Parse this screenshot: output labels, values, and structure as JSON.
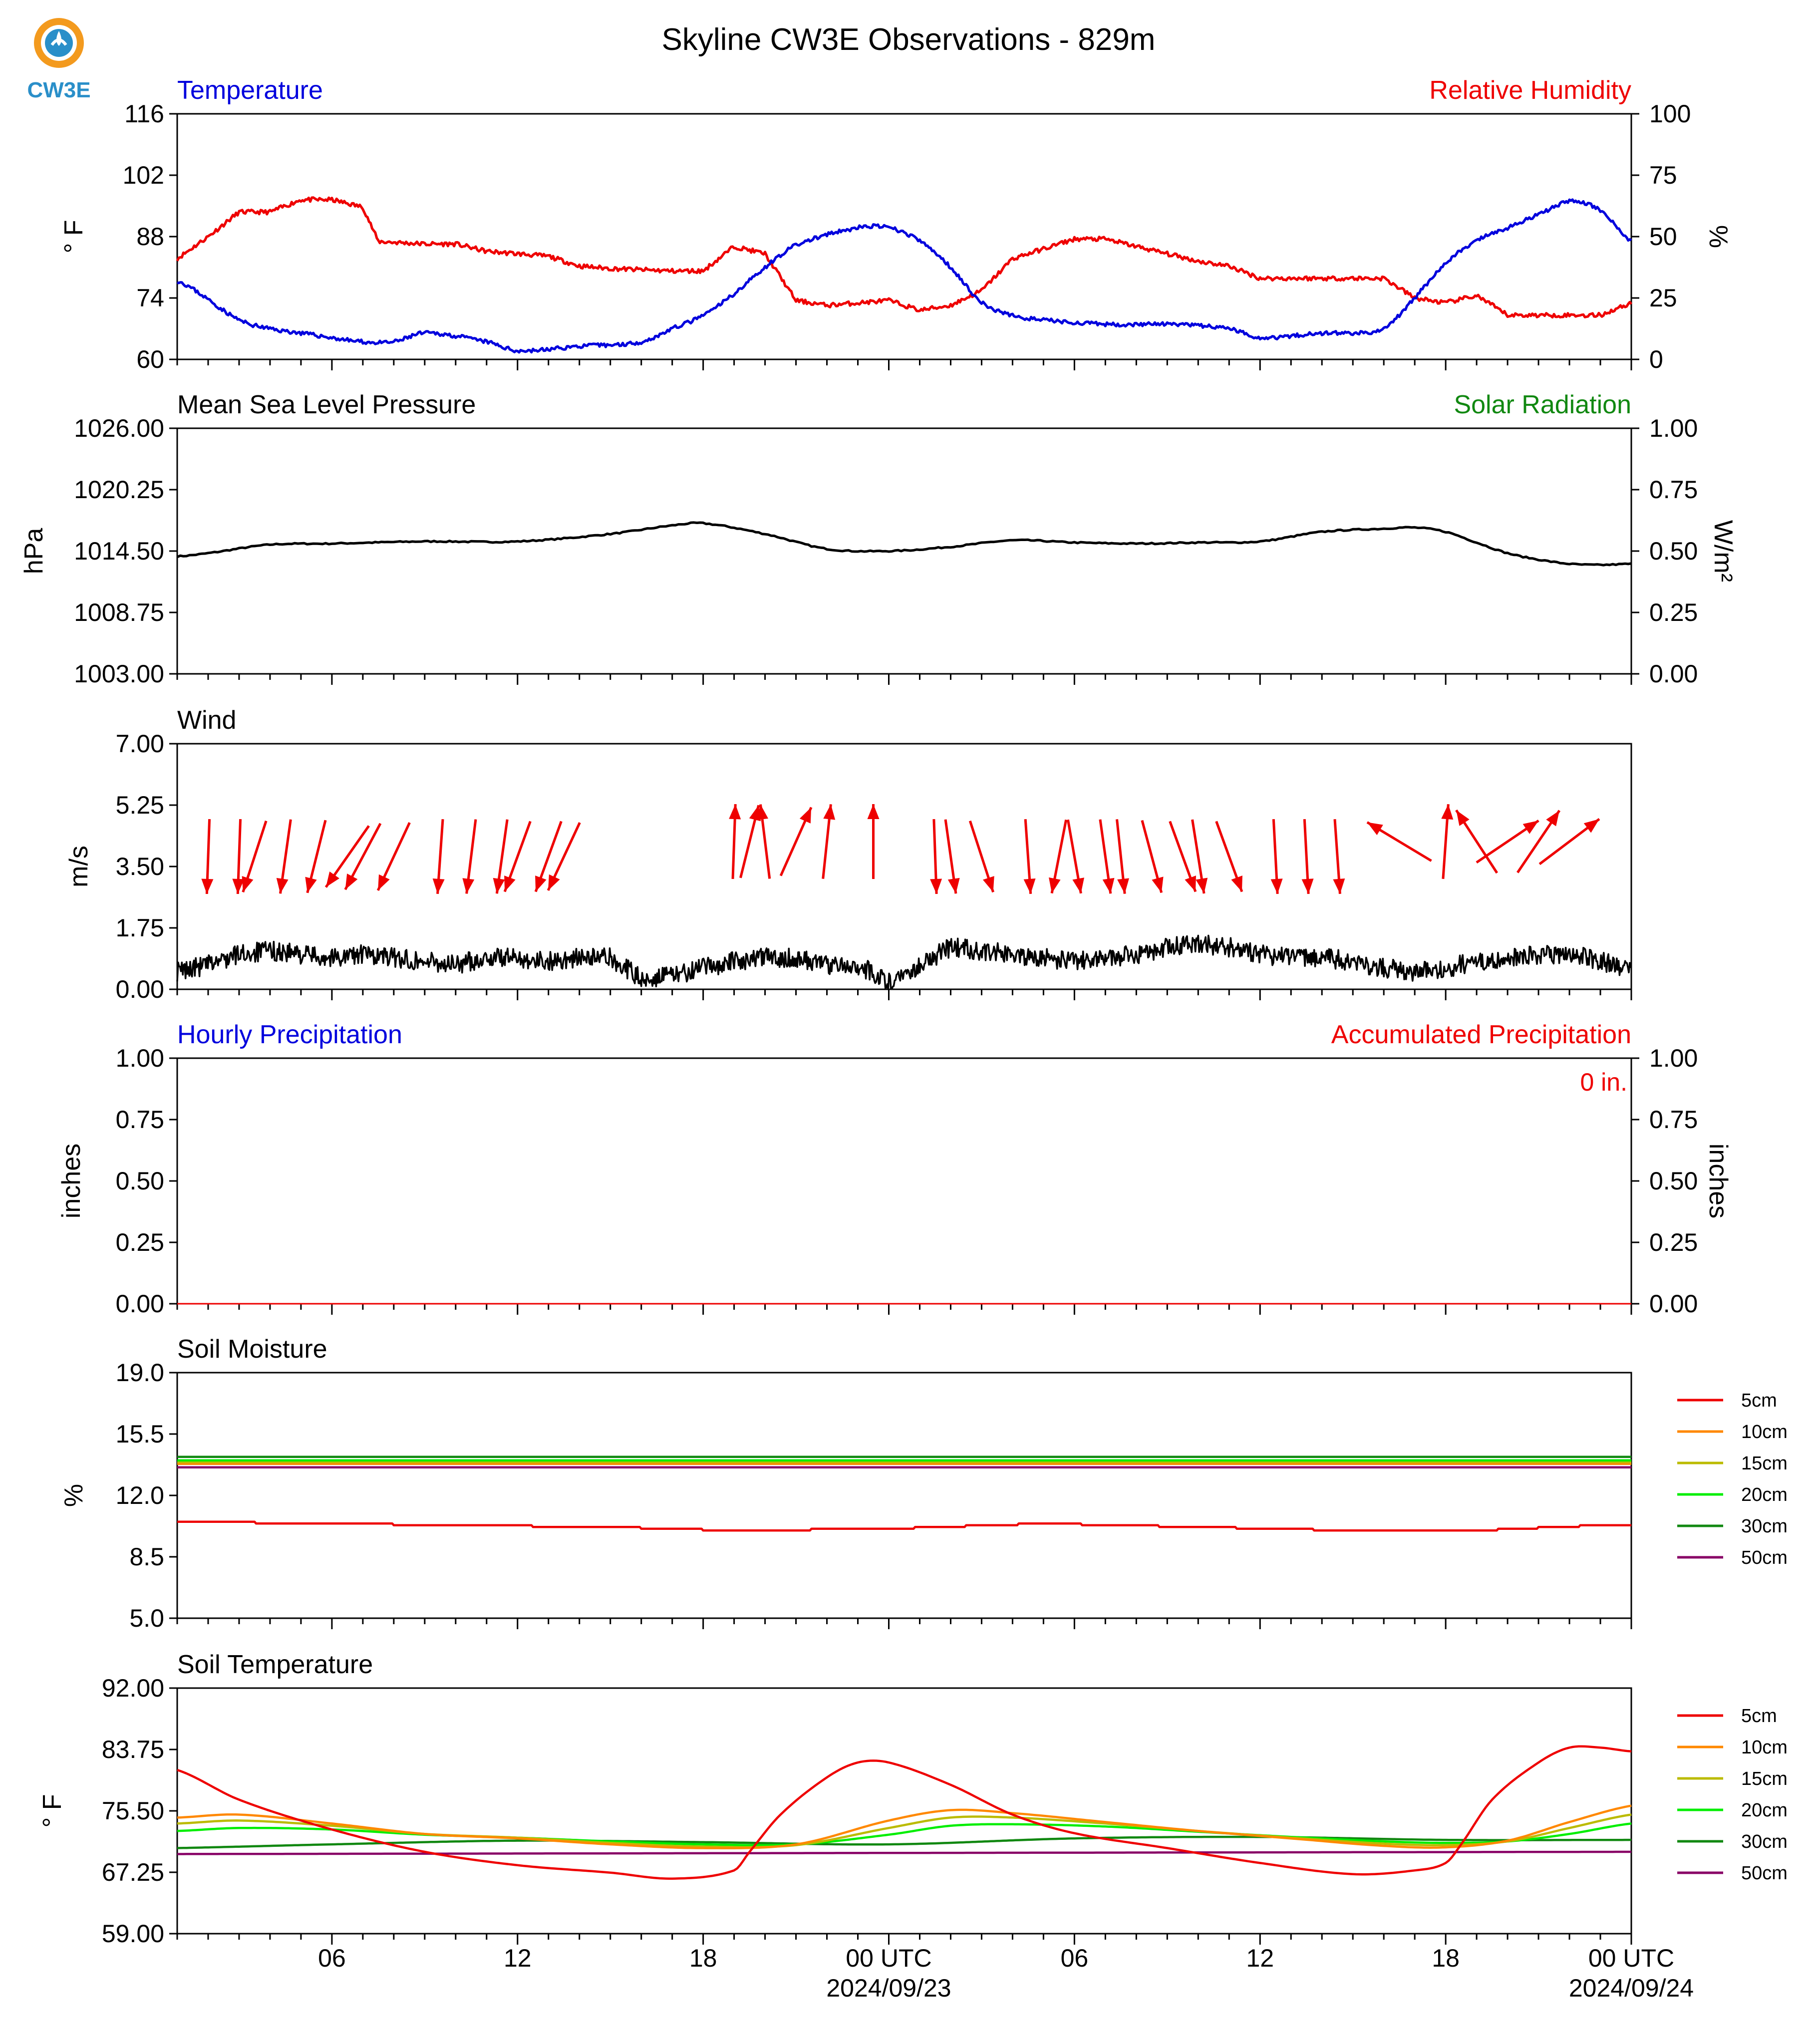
{
  "figure": {
    "title": "Skyline CW3E Observations - 829m",
    "logo_text": "CW3E",
    "colors": {
      "blue": "#0000dd",
      "red": "#ee0000",
      "green": "#118811",
      "black": "#000000"
    }
  },
  "time_axis": {
    "range_hours": [
      -23,
      24
    ],
    "major_tick_labels": [
      {
        "hour": -18,
        "label": "06"
      },
      {
        "hour": -12,
        "label": "12"
      },
      {
        "hour": -6,
        "label": "18"
      },
      {
        "hour": 0,
        "label": "00 UTC",
        "date": "2024/09/23"
      },
      {
        "hour": 6,
        "label": "06"
      },
      {
        "hour": 12,
        "label": "12"
      },
      {
        "hour": 18,
        "label": "18"
      },
      {
        "hour": 24,
        "label": "00 UTC",
        "date": "2024/09/24"
      }
    ]
  },
  "panels": {
    "temperature": {
      "left_title": "Temperature",
      "right_title": "Relative Humidity",
      "left_unit": "° F",
      "right_unit": "%",
      "left_ticks": [
        "116",
        "102",
        "88",
        "74",
        "60"
      ],
      "right_ticks": [
        "100",
        "75",
        "50",
        "25",
        "0"
      ]
    },
    "pressure": {
      "left_title": "Mean Sea Level Pressure",
      "right_title": "Solar Radiation",
      "left_unit": "hPa",
      "right_unit": "W/m²",
      "left_ticks": [
        "1026.00",
        "1020.25",
        "1014.50",
        "1008.75",
        "1003.00"
      ],
      "right_ticks": [
        "1.00",
        "0.75",
        "0.50",
        "0.25",
        "0.00"
      ]
    },
    "wind": {
      "left_title": "Wind",
      "left_unit": "m/s",
      "left_ticks": [
        "7.00",
        "5.25",
        "3.50",
        "1.75",
        "0.00"
      ]
    },
    "precip": {
      "left_title": "Hourly Precipitation",
      "right_title": "Accumulated Precipitation",
      "annotation": "0 in.",
      "left_unit": "inches",
      "right_unit": "inches",
      "left_ticks": [
        "1.00",
        "0.75",
        "0.50",
        "0.25",
        "0.00"
      ],
      "right_ticks": [
        "1.00",
        "0.75",
        "0.50",
        "0.25",
        "0.00"
      ]
    },
    "soil_moisture": {
      "left_title": "Soil Moisture",
      "left_unit": "%",
      "left_ticks": [
        "19.0",
        "15.5",
        "12.0",
        "8.5",
        "5.0"
      ]
    },
    "soil_temperature": {
      "left_title": "Soil Temperature",
      "left_unit": "° F",
      "left_ticks": [
        "92.00",
        "83.75",
        "75.50",
        "67.25",
        "59.00"
      ]
    }
  },
  "legend": {
    "items": [
      {
        "label": "5cm",
        "color": "#ee0000"
      },
      {
        "label": "10cm",
        "color": "#ff8800"
      },
      {
        "label": "15cm",
        "color": "#bbbb00"
      },
      {
        "label": "20cm",
        "color": "#00ee00"
      },
      {
        "label": "30cm",
        "color": "#118811"
      },
      {
        "label": "50cm",
        "color": "#880066"
      }
    ]
  },
  "chart_data": [
    {
      "type": "line",
      "title": "Temperature",
      "ylabel": "° F",
      "x_unit": "hours relative to 2024/09/23 00 UTC",
      "ylim": [
        60,
        116
      ],
      "series": [
        {
          "name": "Temperature",
          "axis": "left",
          "color": "#0000dd",
          "x": [
            -23,
            -21,
            -20,
            -19,
            -17,
            -16,
            -15,
            -13,
            -12,
            -10,
            -8,
            -7,
            -6,
            -5,
            -4,
            -3,
            -1,
            0,
            1,
            2,
            3,
            4,
            5,
            7,
            9,
            11,
            12,
            14,
            15,
            16,
            17,
            18,
            19,
            20,
            21,
            22,
            23,
            24
          ],
          "values": [
            78,
            69,
            67,
            66,
            64,
            64,
            66,
            64,
            62,
            63,
            64,
            67,
            70,
            75,
            81,
            86,
            90,
            90,
            87,
            81,
            73,
            70,
            69,
            68,
            68,
            67,
            65,
            66,
            66,
            67,
            74,
            82,
            87,
            90,
            93,
            96,
            94,
            87
          ]
        }
      ]
    },
    {
      "type": "line",
      "title": "Relative Humidity",
      "ylabel": "%",
      "ylim": [
        0,
        100
      ],
      "series": [
        {
          "name": "Relative Humidity",
          "axis": "right",
          "color": "#ee0000",
          "x": [
            -23,
            -22,
            -21,
            -20,
            -19,
            -18,
            -17,
            -16.5,
            -15,
            -14,
            -13,
            -11,
            -10,
            -9,
            -7,
            -6,
            -5,
            -4,
            -3,
            -2,
            -1,
            0,
            1,
            2,
            3,
            4,
            6,
            7,
            8,
            9,
            10,
            11,
            12,
            14,
            15,
            16,
            17,
            18,
            19,
            20,
            21,
            22,
            23,
            24
          ],
          "values": [
            41,
            50,
            60,
            60,
            65,
            65,
            62,
            48,
            47,
            47,
            44,
            42,
            38,
            37,
            36,
            36,
            46,
            43,
            24,
            22,
            23,
            24,
            20,
            22,
            28,
            41,
            49,
            49,
            46,
            43,
            40,
            38,
            33,
            33,
            33,
            33,
            25,
            23,
            26,
            18,
            18,
            18,
            18,
            23
          ]
        }
      ]
    },
    {
      "type": "line",
      "title": "Mean Sea Level Pressure",
      "ylabel": "hPa",
      "ylim": [
        1003,
        1026
      ],
      "series": [
        {
          "name": "Mean Sea Level Pressure",
          "axis": "left",
          "color": "#000000",
          "x": [
            -23,
            -22,
            -20,
            -18,
            -15,
            -12,
            -9,
            -7,
            -6,
            -4,
            -2,
            0,
            2,
            4,
            6,
            8,
            10,
            12,
            14,
            16,
            17,
            18,
            19,
            20,
            21,
            22,
            23,
            24
          ],
          "values": [
            1014.0,
            1014.3,
            1015.1,
            1015.2,
            1015.4,
            1015.4,
            1016.1,
            1016.9,
            1017.1,
            1016.1,
            1014.7,
            1014.5,
            1014.9,
            1015.5,
            1015.3,
            1015.2,
            1015.3,
            1015.4,
            1016.3,
            1016.6,
            1016.7,
            1016.3,
            1015.3,
            1014.3,
            1013.7,
            1013.3,
            1013.2,
            1013.3
          ]
        }
      ]
    },
    {
      "type": "line",
      "title": "Wind",
      "ylabel": "m/s",
      "ylim": [
        0,
        7
      ],
      "series": [
        {
          "name": "Wind speed",
          "color": "#000000",
          "x": [
            -23,
            -22,
            -21,
            -20,
            -19,
            -18,
            -17,
            -16,
            -15,
            -14,
            -13,
            -12,
            -11,
            -10,
            -9,
            -8,
            -7,
            -6,
            -5,
            -4,
            -3,
            -2,
            -1,
            0,
            1,
            2,
            3,
            4,
            5,
            6,
            7,
            8,
            9,
            10,
            11,
            12,
            13,
            14,
            15,
            16,
            17,
            18,
            19,
            20,
            21,
            22,
            23,
            24
          ],
          "values": [
            0.5,
            0.7,
            1.0,
            1.1,
            1.0,
            0.9,
            1.0,
            0.9,
            0.8,
            0.7,
            0.9,
            0.9,
            0.8,
            0.9,
            0.9,
            0.3,
            0.4,
            0.6,
            0.8,
            0.9,
            0.9,
            0.7,
            0.7,
            0.2,
            0.7,
            1.2,
            1.1,
            1.0,
            0.9,
            0.8,
            0.9,
            1.0,
            1.2,
            1.3,
            1.2,
            1.0,
            0.9,
            0.9,
            0.8,
            0.6,
            0.5,
            0.6,
            0.8,
            0.9,
            1.0,
            1.0,
            0.8,
            0.6
          ]
        }
      ]
    },
    {
      "type": "line",
      "title": "Hourly Precipitation",
      "ylabel": "inches",
      "ylim": [
        0,
        1
      ],
      "series": [
        {
          "name": "Hourly Precipitation",
          "color": "#0000dd",
          "x": [
            -23,
            24
          ],
          "values": [
            0,
            0
          ]
        },
        {
          "name": "Accumulated Precipitation",
          "color": "#ee0000",
          "x": [
            -23,
            24
          ],
          "values": [
            0,
            0
          ]
        }
      ]
    },
    {
      "type": "line",
      "title": "Soil Moisture",
      "ylabel": "%",
      "ylim": [
        5,
        19
      ],
      "series": [
        {
          "name": "5cm",
          "color": "#ee0000",
          "x": [
            -23,
            -18,
            -14,
            -9,
            -5,
            0,
            5,
            10,
            15,
            19,
            23,
            24
          ],
          "values": [
            10.5,
            10.4,
            10.3,
            10.2,
            10.0,
            10.1,
            10.4,
            10.2,
            10.0,
            10.0,
            10.3,
            10.3
          ]
        },
        {
          "name": "10cm",
          "color": "#ff8800",
          "x": [
            -23,
            24
          ],
          "values": [
            13.8,
            13.8
          ]
        },
        {
          "name": "15cm",
          "color": "#bbbb00",
          "x": [
            -23,
            24
          ],
          "values": [
            13.9,
            13.9
          ]
        },
        {
          "name": "20cm",
          "color": "#00ee00",
          "x": [
            -23,
            24
          ],
          "values": [
            14.0,
            14.0
          ]
        },
        {
          "name": "30cm",
          "color": "#118811",
          "x": [
            -23,
            24
          ],
          "values": [
            14.2,
            14.2
          ]
        },
        {
          "name": "50cm",
          "color": "#880066",
          "x": [
            -23,
            24
          ],
          "values": [
            13.6,
            13.6
          ]
        }
      ]
    },
    {
      "type": "line",
      "title": "Soil Temperature",
      "ylabel": "° F",
      "ylim": [
        59,
        92
      ],
      "series": [
        {
          "name": "5cm",
          "color": "#ee0000",
          "x": [
            -23,
            -21,
            -18,
            -15,
            -12,
            -9,
            -7,
            -5,
            -4.5,
            -3.5,
            -2,
            -1,
            0,
            2,
            4,
            6,
            9,
            12,
            15,
            17,
            18,
            18.5,
            19.5,
            21,
            22,
            23,
            24
          ],
          "values": [
            81.0,
            77.0,
            73.0,
            70.0,
            68.2,
            67.2,
            66.4,
            67.5,
            70.0,
            75.0,
            80.0,
            82.0,
            82.0,
            79.0,
            75.0,
            72.5,
            70.5,
            68.5,
            67.0,
            67.5,
            68.5,
            71.0,
            77.0,
            82.0,
            84.0,
            84.0,
            83.5
          ]
        },
        {
          "name": "10cm",
          "color": "#ff8800",
          "x": [
            -23,
            -21,
            -18,
            -15,
            -12,
            -9,
            -6,
            -3,
            0,
            2,
            4,
            7,
            10,
            13,
            16,
            18,
            20,
            22,
            24
          ],
          "values": [
            74.6,
            75.0,
            73.8,
            72.4,
            71.8,
            71.0,
            70.5,
            71.0,
            74.2,
            75.6,
            75.2,
            74.0,
            72.8,
            71.8,
            70.8,
            70.6,
            71.5,
            74.0,
            76.2
          ]
        },
        {
          "name": "15cm",
          "color": "#bbbb00",
          "x": [
            -23,
            -21,
            -18,
            -15,
            -12,
            -9,
            -6,
            -3,
            0,
            2,
            4,
            7,
            10,
            13,
            16,
            18,
            20,
            22,
            24
          ],
          "values": [
            73.8,
            74.2,
            73.5,
            72.4,
            71.9,
            71.2,
            70.7,
            70.9,
            73.2,
            74.6,
            74.6,
            73.8,
            72.8,
            71.9,
            71.1,
            70.9,
            71.4,
            73.2,
            75.0
          ]
        },
        {
          "name": "20cm",
          "color": "#00ee00",
          "x": [
            -23,
            -21,
            -18,
            -15,
            -12,
            -9,
            -6,
            -3,
            0,
            2,
            4,
            7,
            10,
            13,
            16,
            18,
            20,
            22,
            24
          ],
          "values": [
            72.8,
            73.2,
            73.0,
            72.3,
            71.9,
            71.4,
            71.0,
            71.0,
            72.3,
            73.5,
            73.7,
            73.4,
            72.7,
            72.0,
            71.4,
            71.2,
            71.4,
            72.4,
            73.8
          ]
        },
        {
          "name": "30cm",
          "color": "#118811",
          "x": [
            -23,
            -18,
            -12,
            -6,
            0,
            6,
            12,
            18,
            24
          ],
          "values": [
            70.5,
            71.0,
            71.5,
            71.3,
            71.0,
            71.8,
            72.0,
            71.6,
            71.6
          ]
        },
        {
          "name": "50cm",
          "color": "#880066",
          "x": [
            -23,
            24
          ],
          "values": [
            69.7,
            70.0
          ]
        }
      ]
    },
    {
      "type": "vector",
      "title": "Wind direction arrows",
      "ylabel": "m/s",
      "ylim": [
        0,
        7
      ],
      "series": [
        {
          "name": "Wind direction",
          "color": "#ee0000",
          "x": [
            -22,
            -21,
            -20.5,
            -19.5,
            -18.5,
            -17.5,
            -17,
            -16,
            -14.5,
            -13.5,
            -12.5,
            -12,
            -11,
            -10.5,
            -5,
            -4.5,
            -4,
            -3,
            -2,
            -0.5,
            1.5,
            2,
            3,
            4.5,
            5.5,
            6,
            7,
            7.5,
            8.5,
            9.5,
            10,
            11,
            12.5,
            13.5,
            14.5,
            16.5,
            18,
            19,
            20,
            21,
            22
          ],
          "bearing": [
            -178,
            -178,
            -162,
            -172,
            -166,
            -145,
            -152,
            -155,
            -176,
            -173,
            -172,
            -160,
            -160,
            -155,
            2,
            14,
            -7,
            24,
            6,
            0,
            178,
            172,
            162,
            176,
            -169,
            170,
            172,
            174,
            165,
            160,
            171,
            160,
            177,
            177,
            176,
            -59,
            4,
            -33,
            56,
            34,
            53
          ]
        }
      ]
    }
  ]
}
